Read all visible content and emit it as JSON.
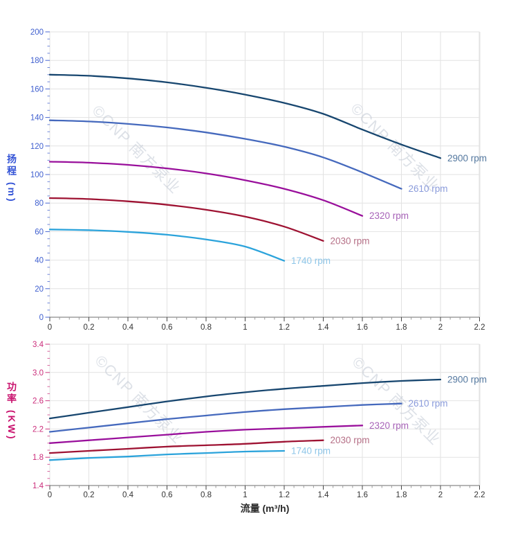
{
  "watermark": {
    "text": "©CNP 南方泵业",
    "color": "#c6cdd8"
  },
  "chart_data": [
    {
      "type": "line",
      "name": "head-curves",
      "title": "",
      "xlabel": "",
      "ylabel": "扬程 (m)",
      "grid": true,
      "legend_position": "line-end",
      "x_axis": {
        "label": "",
        "min": 0,
        "max": 2.2,
        "tick_interval": 0.2,
        "minor_tick_interval": 0.05,
        "tick_labels": [
          "0",
          "0.2",
          "0.4",
          "0.6",
          "0.8",
          "1",
          "1.2",
          "1.4",
          "1.6",
          "1.8",
          "2",
          "2.2"
        ],
        "tick_label_color": "#333333"
      },
      "y_axis": {
        "label": "扬程 (m)",
        "min": 0,
        "max": 200,
        "tick_interval": 20,
        "minor_tick_interval": 5,
        "tick_labels": [
          "0",
          "20",
          "40",
          "60",
          "80",
          "100",
          "120",
          "140",
          "160",
          "180",
          "200"
        ],
        "tick_label_color": "#3f5fcf",
        "title_color": "#3353d6"
      },
      "series": [
        {
          "name": "2900 rpm",
          "color": "#17466f",
          "label_color": "#54789f",
          "points": [
            [
              0,
              170
            ],
            [
              0.2,
              169.2
            ],
            [
              0.4,
              167.4
            ],
            [
              0.6,
              164.6
            ],
            [
              0.8,
              160.8
            ],
            [
              1,
              156
            ],
            [
              1.2,
              150.2
            ],
            [
              1.4,
              142.5
            ],
            [
              1.6,
              131.5
            ],
            [
              1.8,
              121
            ],
            [
              2,
              111.5
            ]
          ]
        },
        {
          "name": "2610 rpm",
          "color": "#4569bd",
          "label_color": "#8a9bdb",
          "points": [
            [
              0,
              138
            ],
            [
              0.2,
              137.2
            ],
            [
              0.4,
              135.5
            ],
            [
              0.6,
              133
            ],
            [
              0.8,
              129.5
            ],
            [
              1,
              125
            ],
            [
              1.2,
              119.5
            ],
            [
              1.4,
              112
            ],
            [
              1.6,
              101.5
            ],
            [
              1.8,
              90
            ]
          ]
        },
        {
          "name": "2320 rpm",
          "color": "#990f9b",
          "label_color": "#a763b8",
          "points": [
            [
              0,
              109
            ],
            [
              0.2,
              108.3
            ],
            [
              0.4,
              106.8
            ],
            [
              0.6,
              104.3
            ],
            [
              0.8,
              100.8
            ],
            [
              1,
              96
            ],
            [
              1.2,
              90
            ],
            [
              1.4,
              82
            ],
            [
              1.6,
              71
            ]
          ]
        },
        {
          "name": "2030 rpm",
          "color": "#9e1232",
          "label_color": "#b56f86",
          "points": [
            [
              0,
              83.5
            ],
            [
              0.2,
              82.8
            ],
            [
              0.4,
              81.2
            ],
            [
              0.6,
              78.8
            ],
            [
              0.8,
              75.3
            ],
            [
              1,
              70.5
            ],
            [
              1.2,
              63.5
            ],
            [
              1.4,
              53.5
            ]
          ]
        },
        {
          "name": "1740 rpm",
          "color": "#2ba3db",
          "label_color": "#8ec6e8",
          "points": [
            [
              0,
              61.5
            ],
            [
              0.2,
              61
            ],
            [
              0.4,
              59.8
            ],
            [
              0.6,
              57.8
            ],
            [
              0.8,
              54.5
            ],
            [
              1,
              49.5
            ],
            [
              1.2,
              39.5
            ]
          ]
        }
      ]
    },
    {
      "type": "line",
      "name": "power-curves",
      "title": "",
      "xlabel": "流量 (m³/h)",
      "ylabel": "功率 (KW)",
      "grid": true,
      "legend_position": "line-end",
      "x_axis": {
        "label": "流量 (m³/h)",
        "min": 0,
        "max": 2.2,
        "tick_interval": 0.2,
        "minor_tick_interval": 0.05,
        "tick_labels": [
          "0",
          "0.2",
          "0.4",
          "0.6",
          "0.8",
          "1",
          "1.2",
          "1.4",
          "1.6",
          "1.8",
          "2",
          "2.2"
        ],
        "tick_label_color": "#333333",
        "title_color": "#2a2a2a"
      },
      "y_axis": {
        "label": "功率 (KW)",
        "min": 1.4,
        "max": 3.4,
        "tick_interval": 0.4,
        "minor_tick_interval": 0.1,
        "tick_labels": [
          "1.4",
          "1.8",
          "2.2",
          "2.6",
          "3.0",
          "3.4"
        ],
        "tick_label_color": "#cb2d7b",
        "title_color": "#c9136e"
      },
      "series": [
        {
          "name": "2900 rpm",
          "color": "#17466f",
          "label_color": "#54789f",
          "points": [
            [
              0,
              2.35
            ],
            [
              0.2,
              2.43
            ],
            [
              0.4,
              2.51
            ],
            [
              0.6,
              2.59
            ],
            [
              0.8,
              2.66
            ],
            [
              1,
              2.72
            ],
            [
              1.2,
              2.77
            ],
            [
              1.4,
              2.81
            ],
            [
              1.6,
              2.85
            ],
            [
              1.8,
              2.88
            ],
            [
              2,
              2.9
            ]
          ]
        },
        {
          "name": "2610 rpm",
          "color": "#4569bd",
          "label_color": "#8a9bdb",
          "points": [
            [
              0,
              2.16
            ],
            [
              0.2,
              2.22
            ],
            [
              0.4,
              2.28
            ],
            [
              0.6,
              2.34
            ],
            [
              0.8,
              2.39
            ],
            [
              1,
              2.44
            ],
            [
              1.2,
              2.48
            ],
            [
              1.4,
              2.51
            ],
            [
              1.6,
              2.54
            ],
            [
              1.8,
              2.56
            ]
          ]
        },
        {
          "name": "2320 rpm",
          "color": "#990f9b",
          "label_color": "#a763b8",
          "points": [
            [
              0,
              2.0
            ],
            [
              0.2,
              2.04
            ],
            [
              0.4,
              2.08
            ],
            [
              0.6,
              2.12
            ],
            [
              0.8,
              2.16
            ],
            [
              1,
              2.19
            ],
            [
              1.2,
              2.21
            ],
            [
              1.4,
              2.23
            ],
            [
              1.6,
              2.25
            ]
          ]
        },
        {
          "name": "2030 rpm",
          "color": "#9e1232",
          "label_color": "#b56f86",
          "points": [
            [
              0,
              1.86
            ],
            [
              0.2,
              1.89
            ],
            [
              0.4,
              1.92
            ],
            [
              0.6,
              1.95
            ],
            [
              0.8,
              1.97
            ],
            [
              1,
              1.99
            ],
            [
              1.2,
              2.02
            ],
            [
              1.4,
              2.04
            ]
          ]
        },
        {
          "name": "1740 rpm",
          "color": "#2ba3db",
          "label_color": "#8ec6e8",
          "points": [
            [
              0,
              1.76
            ],
            [
              0.2,
              1.79
            ],
            [
              0.4,
              1.81
            ],
            [
              0.6,
              1.84
            ],
            [
              0.8,
              1.86
            ],
            [
              1,
              1.88
            ],
            [
              1.2,
              1.89
            ]
          ]
        }
      ]
    }
  ]
}
